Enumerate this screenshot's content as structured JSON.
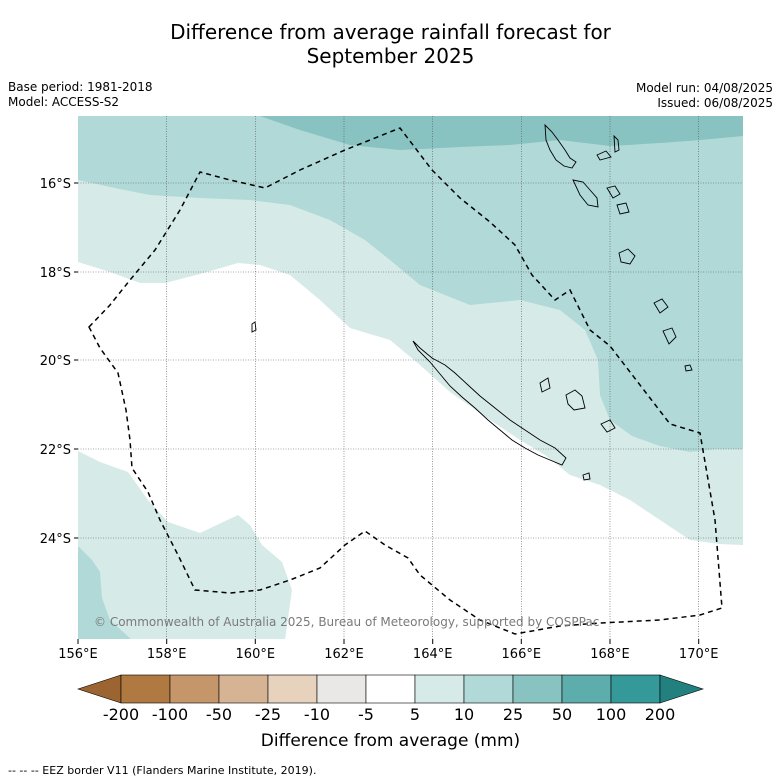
{
  "title_line1": "Difference from average rainfall forecast for",
  "title_line2": "September 2025",
  "base_period": "Base period: 1981-2018",
  "model": "Model: ACCESS-S2",
  "model_run": "Model run: 04/08/2025",
  "issued": "Issued: 06/08/2025",
  "copyright": "© Commonwealth of Australia 2025, Bureau of Meteorology, supported by COSPPac",
  "lat_labels": [
    "16°S",
    "18°S",
    "20°S",
    "22°S",
    "24°S"
  ],
  "lon_labels": [
    "156°E",
    "158°E",
    "160°E",
    "162°E",
    "164°E",
    "166°E",
    "168°E",
    "170°E"
  ],
  "colorbar": {
    "ticks": [
      "-200",
      "-100",
      "-50",
      "-25",
      "-10",
      "-5",
      "5",
      "10",
      "25",
      "50",
      "100",
      "200"
    ],
    "colors": [
      "#9b6430",
      "#b07942",
      "#c5966a",
      "#d6b393",
      "#e6d2bd",
      "#e9e8e6",
      "#ffffff",
      "#d6eae8",
      "#b0d9d7",
      "#88c2c1",
      "#5dadac",
      "#35999a",
      "#22807f"
    ],
    "label": "Difference from average (mm)"
  },
  "footer": "--  --  -- EEZ border V11 (Flanders Marine Institute, 2019)."
}
